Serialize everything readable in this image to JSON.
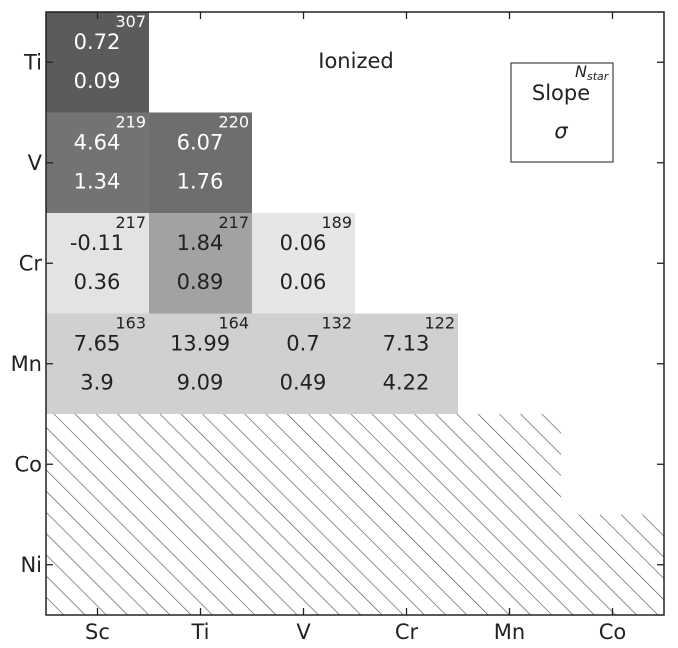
{
  "chart_data": {
    "type": "heatmap",
    "title": "Ionized",
    "x_categories": [
      "Sc",
      "Ti",
      "V",
      "Cr",
      "Mn",
      "Co"
    ],
    "y_categories": [
      "Ti",
      "V",
      "Cr",
      "Mn",
      "Co",
      "Ni"
    ],
    "legend": {
      "slope_label": "Slope",
      "sigma_label": "σ",
      "n_label_main": "N",
      "n_label_sub": "star",
      "placement": "top-right"
    },
    "cells": [
      {
        "x": "Sc",
        "y": "Ti",
        "slope": "0.72",
        "sigma": "0.09",
        "n": "307",
        "shade": "#5b5b5b",
        "text": "#ffffff"
      },
      {
        "x": "Sc",
        "y": "V",
        "slope": "4.64",
        "sigma": "1.34",
        "n": "219",
        "shade": "#737373",
        "text": "#ffffff"
      },
      {
        "x": "Ti",
        "y": "V",
        "slope": "6.07",
        "sigma": "1.76",
        "n": "220",
        "shade": "#6e6e6e",
        "text": "#ffffff"
      },
      {
        "x": "Sc",
        "y": "Cr",
        "slope": "-0.11",
        "sigma": "0.36",
        "n": "217",
        "shade": "#e3e3e3",
        "text": "#222222"
      },
      {
        "x": "Ti",
        "y": "Cr",
        "slope": "1.84",
        "sigma": "0.89",
        "n": "217",
        "shade": "#a2a2a2",
        "text": "#222222"
      },
      {
        "x": "V",
        "y": "Cr",
        "slope": "0.06",
        "sigma": "0.06",
        "n": "189",
        "shade": "#e6e6e6",
        "text": "#222222"
      },
      {
        "x": "Sc",
        "y": "Mn",
        "slope": "7.65",
        "sigma": "3.9",
        "n": "163",
        "shade": "#d0d0d0",
        "text": "#222222"
      },
      {
        "x": "Ti",
        "y": "Mn",
        "slope": "13.99",
        "sigma": "9.09",
        "n": "164",
        "shade": "#d0d0d0",
        "text": "#222222"
      },
      {
        "x": "V",
        "y": "Mn",
        "slope": "0.7",
        "sigma": "0.49",
        "n": "132",
        "shade": "#d0d0d0",
        "text": "#222222"
      },
      {
        "x": "Cr",
        "y": "Mn",
        "slope": "7.13",
        "sigma": "4.22",
        "n": "122",
        "shade": "#d0d0d0",
        "text": "#222222"
      }
    ],
    "hatched_region": {
      "description_rows": [
        "Co",
        "Ni"
      ],
      "co_row_columns": [
        "Sc",
        "Ti",
        "V",
        "Cr",
        "Mn"
      ],
      "ni_row_columns": [
        "Sc",
        "Ti",
        "V",
        "Cr",
        "Mn",
        "Co"
      ]
    },
    "colors": {
      "hatch": "#555555",
      "axis": "#222222",
      "background": "#ffffff"
    }
  }
}
